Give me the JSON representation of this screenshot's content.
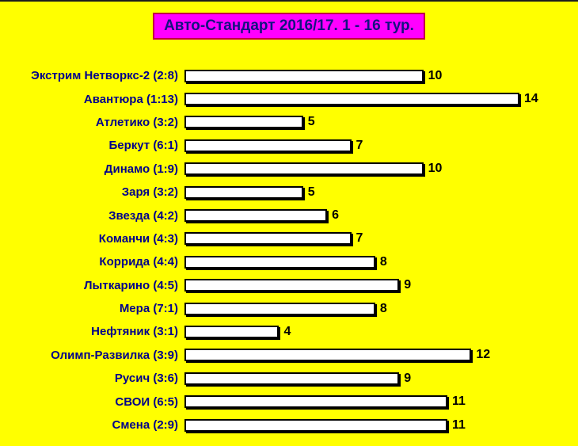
{
  "page": {
    "background_color": "#ffff00",
    "top_border_color": "#1c1c1c"
  },
  "title": {
    "text": "Авто-Стандарт 2016/17. 1 - 16 тур.",
    "background_color": "#ff00ff",
    "border_color": "#c00040",
    "text_color": "#131380"
  },
  "chart_data": {
    "type": "bar",
    "orientation": "horizontal",
    "title": "Авто-Стандарт 2016/17. 1 - 16 тур.",
    "xlabel": "",
    "ylabel": "",
    "xlim": [
      0,
      14
    ],
    "grid": false,
    "legend": false,
    "bar_fill_color": "#ffffff",
    "bar_border_color": "#000000",
    "category_label_color": "#00008b",
    "value_label_color": "#000000",
    "categories": [
      "Экстрим Нетворкс-2 (2:8)",
      "Авантюра (1:13)",
      "Атлетико (3:2)",
      "Беркут (6:1)",
      "Динамо (1:9)",
      "Заря (3:2)",
      "Звезда (4:2)",
      "Команчи (4:3)",
      "Коррида (4:4)",
      "Лыткарино (4:5)",
      "Мера (7:1)",
      "Нефтяник (3:1)",
      "Олимп-Развилка (3:9)",
      "Русич (3:6)",
      "СВОИ (6:5)",
      "Смена (2:9)"
    ],
    "values": [
      10,
      14,
      5,
      7,
      10,
      5,
      6,
      7,
      8,
      9,
      8,
      4,
      12,
      9,
      11,
      11
    ]
  }
}
